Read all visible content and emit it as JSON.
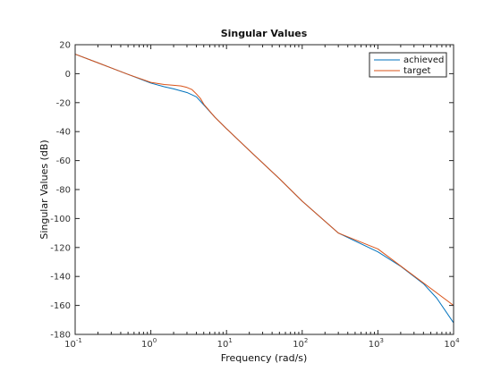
{
  "chart_data": {
    "type": "line",
    "title": "Singular Values",
    "xlabel": "Frequency (rad/s)",
    "ylabel": "Singular Values (dB)",
    "xscale": "log",
    "xlim": [
      0.1,
      10000
    ],
    "ylim": [
      -180,
      20
    ],
    "xticks": [
      {
        "value": 0.1,
        "base": "10",
        "exp": "-1"
      },
      {
        "value": 1,
        "base": "10",
        "exp": "0"
      },
      {
        "value": 10,
        "base": "10",
        "exp": "1"
      },
      {
        "value": 100,
        "base": "10",
        "exp": "2"
      },
      {
        "value": 1000,
        "base": "10",
        "exp": "3"
      },
      {
        "value": 10000,
        "base": "10",
        "exp": "4"
      }
    ],
    "yticks": [
      {
        "value": 20,
        "label": "20"
      },
      {
        "value": 0,
        "label": "0"
      },
      {
        "value": -20,
        "label": "-20"
      },
      {
        "value": -40,
        "label": "-40"
      },
      {
        "value": -60,
        "label": "-60"
      },
      {
        "value": -80,
        "label": "-80"
      },
      {
        "value": -100,
        "label": "-100"
      },
      {
        "value": -120,
        "label": "-120"
      },
      {
        "value": -140,
        "label": "-140"
      },
      {
        "value": -160,
        "label": "-160"
      },
      {
        "value": -180,
        "label": "-180"
      }
    ],
    "grid": false,
    "legend": "top-right",
    "series": [
      {
        "name": "achieved",
        "color": "#0072bd",
        "x": [
          0.1,
          0.2,
          0.5,
          1,
          1.5,
          2,
          3,
          4,
          5,
          7,
          10,
          20,
          50,
          100,
          300,
          1000,
          2000,
          4000,
          6000,
          10000
        ],
        "y": [
          13.5,
          7.5,
          -0.5,
          -6.5,
          -9,
          -10.5,
          -13,
          -16,
          -21.5,
          -30,
          -38,
          -53,
          -72.5,
          -88,
          -110,
          -123,
          -133,
          -145,
          -155,
          -172
        ]
      },
      {
        "name": "target",
        "color": "#d95319",
        "x": [
          0.1,
          0.2,
          0.5,
          1,
          1.5,
          2,
          2.5,
          3,
          3.5,
          4,
          4.5,
          5,
          7,
          10,
          20,
          50,
          100,
          300,
          1000,
          10000
        ],
        "y": [
          13.5,
          7.5,
          -0.5,
          -6,
          -7.5,
          -8,
          -8.5,
          -9.5,
          -11,
          -14,
          -17,
          -21,
          -30,
          -38,
          -53,
          -72.5,
          -88,
          -110,
          -121,
          -160
        ]
      }
    ]
  }
}
